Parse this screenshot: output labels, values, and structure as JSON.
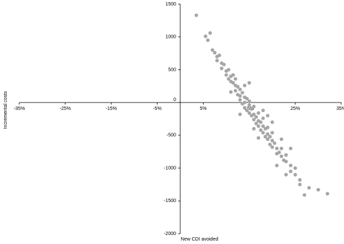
{
  "chart_data": {
    "type": "scatter",
    "xlabel": "New CDI avoided",
    "ylabel": "Incremental costs",
    "color": "#a6a6a6",
    "xlim": [
      -35,
      35
    ],
    "xticks": [
      {
        "value": -35,
        "label": "-35%"
      },
      {
        "value": -25,
        "label": "-25%"
      },
      {
        "value": -15,
        "label": "-15%"
      },
      {
        "value": -5,
        "label": "-5%"
      },
      {
        "value": 5,
        "label": "5%"
      },
      {
        "value": 15,
        "label": "15%"
      },
      {
        "value": 25,
        "label": "25%"
      },
      {
        "value": 35,
        "label": "35%"
      }
    ],
    "ylim": [
      -2000,
      1500
    ],
    "yticks": [
      -2000,
      -1500,
      -1000,
      -500,
      0,
      500,
      1000,
      1500
    ],
    "x": [
      7,
      7.5,
      8,
      8,
      8.5,
      9,
      9,
      9.5,
      10,
      10,
      10.5,
      10.5,
      11,
      11,
      11.5,
      11.5,
      12,
      12,
      12.5,
      12.5,
      13,
      13,
      13,
      13.5,
      13.5,
      14,
      14,
      14,
      14.5,
      14.5,
      15,
      15,
      15,
      15.5,
      15.5,
      16,
      16,
      16,
      16.5,
      16.5,
      17,
      17,
      17,
      17.5,
      17.5,
      18,
      18,
      18,
      18.5,
      18.5,
      19,
      19,
      19,
      19.5,
      19.5,
      20,
      20,
      20,
      20.5,
      21,
      21,
      21.5,
      22,
      22,
      22.5,
      23,
      23,
      24,
      24,
      25,
      25,
      26,
      26,
      27,
      28,
      30,
      32,
      3.5,
      5.5,
      6.5,
      6,
      11,
      12,
      14,
      16,
      18,
      20,
      22,
      24,
      13,
      15,
      17,
      19,
      21,
      23
    ],
    "values": [
      800,
      760,
      700,
      640,
      720,
      600,
      520,
      580,
      480,
      420,
      500,
      360,
      400,
      320,
      300,
      420,
      260,
      180,
      240,
      120,
      200,
      100,
      40,
      150,
      -20,
      80,
      0,
      -80,
      60,
      -120,
      -40,
      -160,
      20,
      -100,
      -200,
      -180,
      -260,
      -60,
      -220,
      -320,
      -280,
      -360,
      -160,
      -300,
      -420,
      -360,
      -460,
      -240,
      -400,
      -520,
      -480,
      -560,
      -380,
      -520,
      -640,
      -580,
      -680,
      -460,
      -620,
      -700,
      -780,
      -760,
      -820,
      -700,
      -880,
      -900,
      -800,
      -960,
      -1050,
      -1100,
      -1000,
      -1180,
      -1250,
      -1410,
      -1300,
      -1330,
      -1390,
      1330,
      1010,
      1060,
      950,
      160,
      360,
      260,
      -400,
      -120,
      -300,
      -560,
      -700,
      -180,
      300,
      -540,
      -200,
      -960,
      -1100
    ]
  }
}
